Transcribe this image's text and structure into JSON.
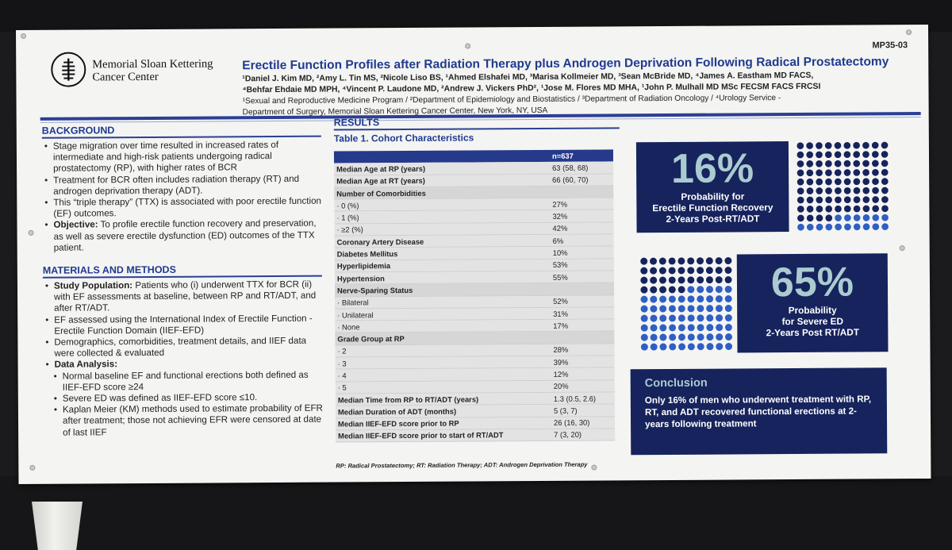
{
  "poster": {
    "code": "MP35-03",
    "institution": {
      "line1": "Memorial Sloan Kettering",
      "line2": "Cancer Center"
    },
    "title": "Erectile Function Profiles after Radiation Therapy plus Androgen Deprivation Following Radical Prostatectomy",
    "authors_line1": "¹Daniel J. Kim MD, ²Amy L. Tin MS, ²Nicole Liso BS, ¹Ahmed Elshafei MD, ³Marisa Kollmeier MD, ³Sean McBride MD, ⁴James A. Eastham MD FACS,",
    "authors_line2": "⁴Behfar Ehdaie MD MPH, ⁴Vincent P. Laudone MD, ²Andrew J. Vickers PhD², ¹Jose M. Flores MD MHA, ¹John P. Mulhall MD MSc FECSM FACS FRCSI",
    "affil_line1": "¹Sexual and Reproductive Medicine Program / ²Department of Epidemiology and Biostatistics / ³Department of Radiation Oncology / ⁴Urology Service -",
    "affil_line2": "Department of Surgery, Memorial Sloan Kettering Cancer Center, New York, NY, USA"
  },
  "background": {
    "heading": "BACKGROUND",
    "b1": "Stage migration over time resulted in increased rates of intermediate and high-risk patients undergoing radical prostatectomy (RP), with higher rates of BCR",
    "b2": "Treatment for BCR often includes radiation therapy (RT) and androgen deprivation therapy (ADT).",
    "b3": "This “triple therapy” (TTX) is associated with poor erectile function (EF) outcomes.",
    "b4_label": "Objective:",
    "b4": " To profile erectile function recovery and preservation, as well as severe erectile dysfunction (ED) outcomes of the TTX patient."
  },
  "methods": {
    "heading": "MATERIALS AND METHODS",
    "b1_label": "Study Population:",
    "b1": " Patients who (i) underwent TTX for BCR (ii) with EF assessments at baseline, between RP and RT/ADT, and after RT/ADT.",
    "b2": "EF assessed using the International Index of Erectile Function - Erectile Function Domain (IIEF-EFD)",
    "b3": "Demographics, comorbidities, treatment details, and IIEF data were collected & evaluated",
    "b4_label": "Data Analysis:",
    "s1": "Normal baseline EF and functional erections both defined as IIEF-EFD score ≥24",
    "s2": "Severe ED was defined as IIEF-EFD score ≤10.",
    "s3": "Kaplan Meier (KM) methods used to estimate probability of EFR after treatment; those not achieving EFR were censored at date of last IIEF"
  },
  "results": {
    "heading": "RESULTS",
    "table_title": "Table 1. Cohort Characteristics",
    "n_label": "n=637",
    "rows": [
      {
        "label": "Median Age at RP (years)",
        "value": "63 (58, 68)",
        "bold": true
      },
      {
        "label": "Median Age at RT (years)",
        "value": "66 (60, 70)",
        "bold": true
      },
      {
        "label": "Number of Comorbidities",
        "value": "",
        "bold": true
      },
      {
        "label": "· 0 (%)",
        "value": "27%",
        "bold": false
      },
      {
        "label": "· 1 (%)",
        "value": "32%",
        "bold": false
      },
      {
        "label": "· ≥2 (%)",
        "value": "42%",
        "bold": false
      },
      {
        "label": "Coronary Artery Disease",
        "value": "6%",
        "bold": true
      },
      {
        "label": "Diabetes Mellitus",
        "value": "10%",
        "bold": true
      },
      {
        "label": "Hyperlipidemia",
        "value": "53%",
        "bold": true
      },
      {
        "label": "Hypertension",
        "value": "55%",
        "bold": true
      },
      {
        "label": "Nerve-Sparing Status",
        "value": "",
        "bold": true
      },
      {
        "label": "· Bilateral",
        "value": "52%",
        "bold": false
      },
      {
        "label": "· Unilateral",
        "value": "31%",
        "bold": false
      },
      {
        "label": "· None",
        "value": "17%",
        "bold": false
      },
      {
        "label": "Grade Group at RP",
        "value": "",
        "bold": true
      },
      {
        "label": "· 2",
        "value": "28%",
        "bold": false
      },
      {
        "label": "· 3",
        "value": "39%",
        "bold": false
      },
      {
        "label": "· 4",
        "value": "12%",
        "bold": false
      },
      {
        "label": "· 5",
        "value": "20%",
        "bold": false
      },
      {
        "label": "Median Time from RP to RT/ADT (years)",
        "value": "1.3 (0.5, 2.6)",
        "bold": true
      },
      {
        "label": "Median Duration of ADT (months)",
        "value": "5 (3, 7)",
        "bold": true
      },
      {
        "label": "Median IIEF-EFD score prior to RP",
        "value": "26 (16, 30)",
        "bold": true
      },
      {
        "label": "Median IIEF-EFD score prior to start of RT/ADT",
        "value": "7 (3, 20)",
        "bold": true
      }
    ],
    "footnote": "RP: Radical Prostatectomy; RT: Radiation Therapy; ADT: Androgen Deprivation Therapy"
  },
  "stat1": {
    "value": "16%",
    "line1": "Probability for",
    "line2": "Erectile Function Recovery",
    "line3": "2-Years Post-RT/ADT",
    "fraction": 0.16
  },
  "stat2": {
    "value": "65%",
    "line1": "Probability",
    "line2": "for Severe ED",
    "line3": "2-Years Post RT/ADT",
    "fraction": 0.65
  },
  "conclusion": {
    "heading": "Conclusion",
    "text": "Only 16% of men who underwent treatment with RP, RT, and ADT recovered functional erections at 2-years following treatment"
  },
  "colors": {
    "navy": "#16235c",
    "accent_blue": "#2f5fc4",
    "teal": "#aacbd0",
    "heading_blue": "#1f3a8f"
  }
}
